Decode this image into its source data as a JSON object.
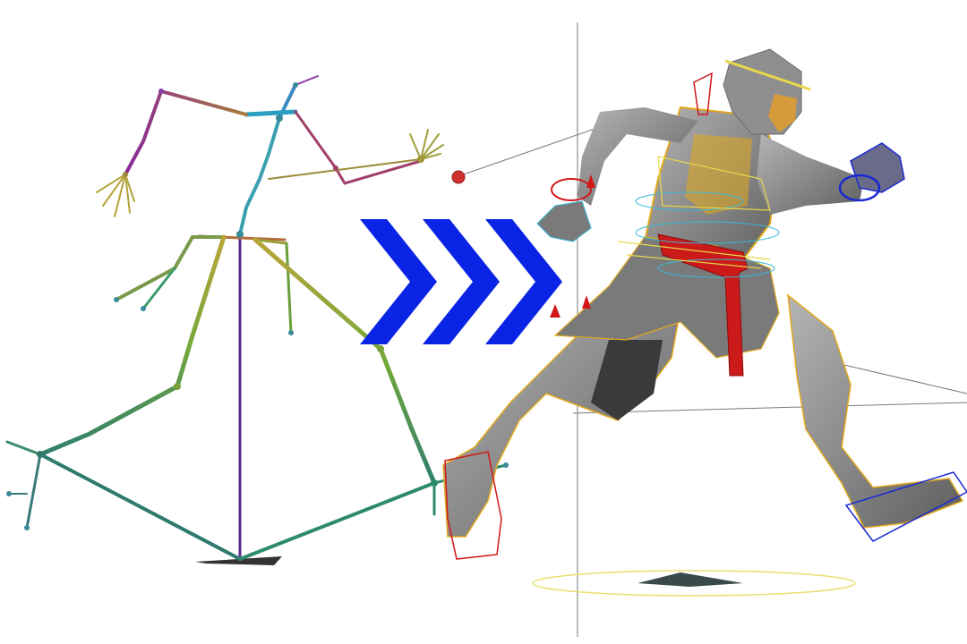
{
  "scene": {
    "background": "#ffffff",
    "arrow_color": "#0a24e6",
    "arrow_count": 3,
    "skeleton_gradient": [
      "#7a2aa0",
      "#3aa6b8",
      "#b7a63a",
      "#7fae3a",
      "#2e8a6a"
    ],
    "rig_colors": {
      "body": "#8a8a8a",
      "armor_trim": "#e2a81c",
      "control_red": "#d01818",
      "control_blue": "#1a2ad0",
      "control_cyan": "#36b8d8",
      "control_yellow": "#e8d84a",
      "guide_line": "#7a7a7a"
    }
  }
}
